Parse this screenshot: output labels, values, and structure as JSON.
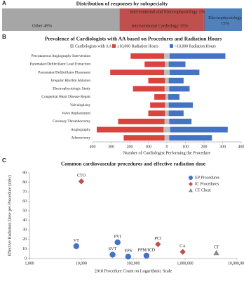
{
  "chart_data": [
    {
      "type": "stacked-bar-h",
      "panel_label": "A",
      "title": "Distribution of responses by subspecialty",
      "series": [
        {
          "label": "Other 49%",
          "value": 49,
          "color": "#a6a6a6"
        },
        {
          "label": "Interventional Cardiology 35%",
          "value": 35,
          "color": "#c0504d"
        },
        {
          "label": "Interventional and Electrophysiology 1%",
          "value": 1,
          "color": "#7f6084"
        },
        {
          "label": "Electrophysiology 15%",
          "value": 15,
          "color": "#4f81bd"
        }
      ]
    },
    {
      "type": "diverging-bar",
      "panel_label": "B",
      "title": "Prevalence of Cardiologists with AA based on Procedures and Radiation Hours",
      "categories": [
        "Percutaneous Angiography Intervention",
        "Pacemaker/Defibrillator Lead Extraction",
        "Pacemaker/Defibrillator Placement",
        "Irregular Rhythm Ablation",
        "Electrophysiologic Study",
        "Congenital Heart Disease Repair",
        "Valvuloplasty",
        "Valve Replacement",
        "Coronary Thrombectomy",
        "Angiography",
        "Atherectomy"
      ],
      "series": [
        {
          "name": "Cardiologists with AA",
          "color": "#bfbfbf",
          "side": "center",
          "values": [
            30,
            20,
            30,
            20,
            25,
            15,
            20,
            20,
            25,
            35,
            25
          ]
        },
        {
          "name": "≤10,000 Radiation Hours",
          "color": "#d9443f",
          "side": "left",
          "values": [
            180,
            110,
            290,
            90,
            170,
            60,
            80,
            90,
            250,
            360,
            220
          ]
        },
        {
          "name": ">10,000 Radiation Hours",
          "color": "#4472c4",
          "side": "right",
          "values": [
            300,
            90,
            160,
            80,
            110,
            60,
            130,
            80,
            120,
            310,
            230
          ]
        }
      ],
      "xlim": [
        -400,
        400
      ],
      "xticks": [
        {
          "value": -400,
          "label": "400"
        },
        {
          "value": -300,
          "label": "300"
        },
        {
          "value": -200,
          "label": "200"
        },
        {
          "value": -100,
          "label": "100"
        },
        0,
        100,
        200,
        300,
        400
      ],
      "xlabel": "Number of Cardiologist Performing the Procedure"
    },
    {
      "type": "scatter",
      "panel_label": "C",
      "title": "Common cardiovascular procedures and effective radiation dose",
      "xlabel": "2018 Procedure Count on Logarithmic Scale",
      "ylabel": "Effective Radiation Dose per Procedure (mSv)",
      "xscale": "log",
      "xlim": [
        1000,
        10000000
      ],
      "xticks": [
        {
          "value": 1000,
          "label": "1,000"
        },
        {
          "value": 10000,
          "label": "10,000"
        },
        {
          "value": 100000,
          "label": "100,000"
        },
        {
          "value": 1000000,
          "label": "1,000,000"
        },
        {
          "value": 10000000,
          "label": "10,000,000"
        }
      ],
      "ylim": [
        0,
        90
      ],
      "yticks": [
        0,
        10,
        20,
        30,
        40,
        50,
        60,
        70,
        80,
        90
      ],
      "series": [
        {
          "name": "EP Procedures",
          "color": "#4472c4",
          "marker": "circle",
          "labels": [
            "VT",
            "PVI",
            "SVT",
            "EPS",
            "PPM/ICD"
          ],
          "x": [
            8000,
            50000,
            40000,
            80000,
            180000
          ],
          "values": [
            13,
            17,
            4,
            2,
            3
          ]
        },
        {
          "name": "IC Procedures",
          "color": "#c0504d",
          "marker": "diamond",
          "labels": [
            "CTO",
            "PCI",
            "CA"
          ],
          "x": [
            10000,
            300000,
            900000
          ],
          "values": [
            81,
            15,
            7
          ]
        },
        {
          "name": "CT Chest",
          "color": "#8c8c8c",
          "marker": "triangle",
          "labels": [
            "CT"
          ],
          "x": [
            4000000
          ],
          "values": [
            6
          ]
        }
      ]
    }
  ]
}
